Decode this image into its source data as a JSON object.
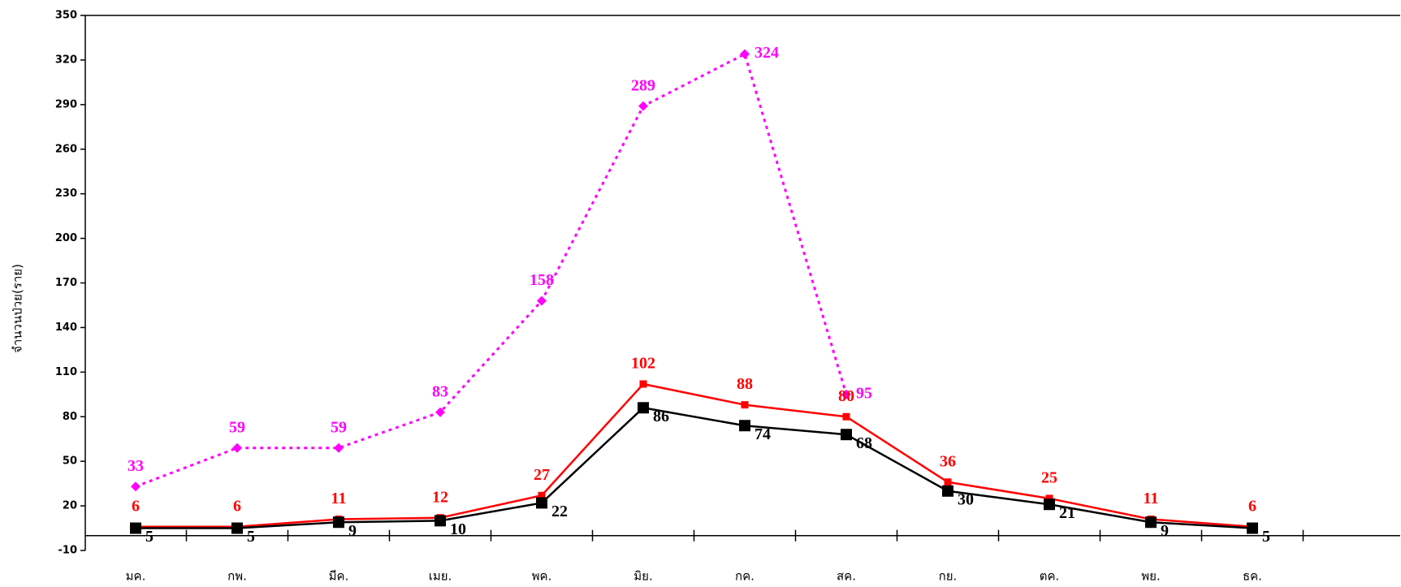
{
  "chart_data": {
    "type": "line",
    "y_label": "จำนวนป่วย(ราย)",
    "categories": [
      "มค.",
      "กพ.",
      "มีค.",
      "เมย.",
      "พค.",
      "มิย.",
      "กค.",
      "สค.",
      "กย.",
      "ตค.",
      "พย.",
      "ธค."
    ],
    "series": [
      {
        "color": "#ff00ff",
        "marker": "diamond",
        "dash": true,
        "values": [
          33,
          59,
          59,
          83,
          158,
          289,
          324,
          95,
          null,
          null,
          null,
          null
        ]
      },
      {
        "color": "#ff0000",
        "marker": "small-square",
        "dash": false,
        "values": [
          6,
          6,
          11,
          12,
          27,
          102,
          88,
          80,
          36,
          25,
          11,
          6
        ]
      },
      {
        "color": "#000000",
        "marker": "square",
        "dash": false,
        "values": [
          5,
          5,
          9,
          10,
          22,
          86,
          74,
          68,
          30,
          21,
          9,
          5
        ]
      }
    ],
    "ylim": [
      -10,
      350
    ],
    "yticks": [
      -10,
      20,
      50,
      80,
      110,
      140,
      170,
      200,
      230,
      260,
      290,
      320,
      350
    ]
  }
}
